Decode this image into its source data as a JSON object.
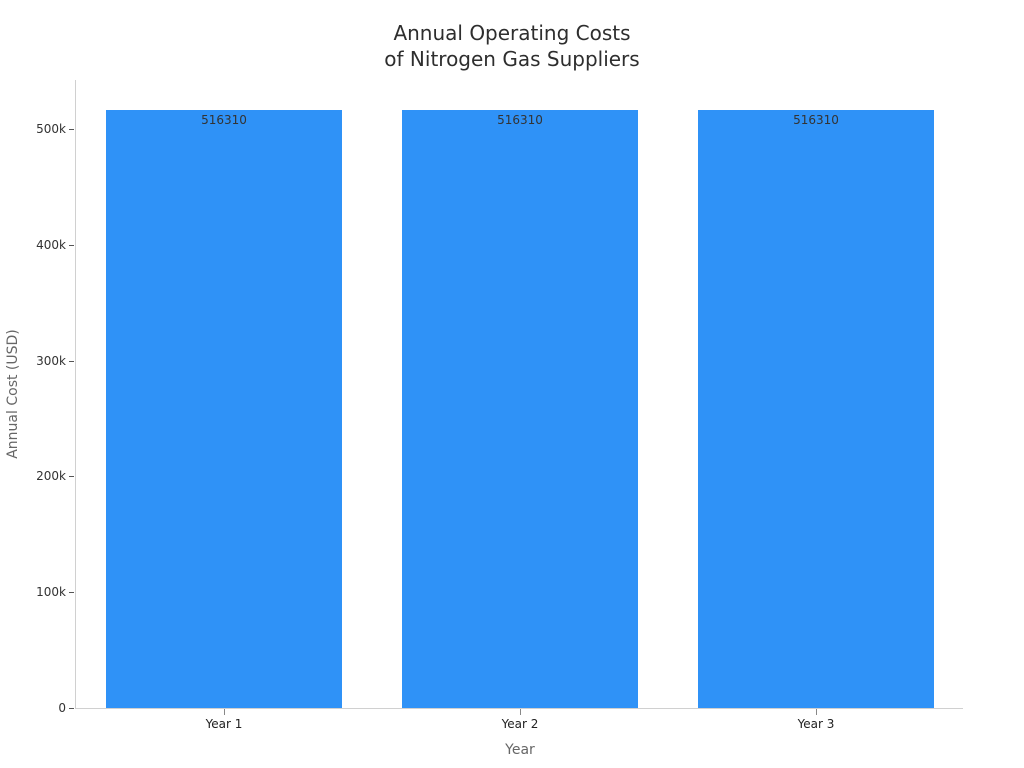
{
  "chart": {
    "title_line1": "Annual Operating Costs",
    "title_line2": "of Nitrogen Gas Suppliers",
    "xlabel": "Year",
    "ylabel": "Annual Cost (USD)",
    "yticks": [
      "0",
      "100k",
      "200k",
      "300k",
      "400k",
      "500k"
    ],
    "bars": [
      {
        "category": "Year 1",
        "value": 516310,
        "label": "516310"
      },
      {
        "category": "Year 2",
        "value": 516310,
        "label": "516310"
      },
      {
        "category": "Year 3",
        "value": 516310,
        "label": "516310"
      }
    ],
    "bar_color": "#2f92f7"
  },
  "chart_data": {
    "type": "bar",
    "title": "Annual Operating Costs of Nitrogen Gas Suppliers",
    "categories": [
      "Year 1",
      "Year 2",
      "Year 3"
    ],
    "values": [
      516310,
      516310,
      516310
    ],
    "xlabel": "Year",
    "ylabel": "Annual Cost (USD)",
    "ylim": [
      0,
      543000
    ],
    "yticks": [
      0,
      100000,
      200000,
      300000,
      400000,
      500000
    ],
    "ytick_labels": [
      "0",
      "100k",
      "200k",
      "300k",
      "400k",
      "500k"
    ],
    "data_labels": [
      "516310",
      "516310",
      "516310"
    ],
    "grid": false,
    "legend": null,
    "colors": [
      "#2f92f7"
    ]
  }
}
